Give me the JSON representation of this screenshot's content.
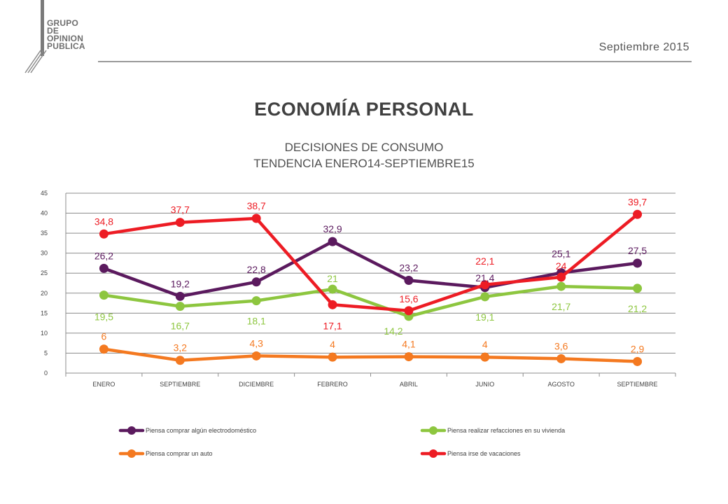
{
  "logo": {
    "lines": [
      "GRUPO",
      "DE",
      "OPINION",
      "PUBLICA"
    ]
  },
  "header": {
    "date": "Septiembre 2015"
  },
  "title": "ECONOMÍA PERSONAL",
  "subtitle_lines": [
    "DECISIONES DE CONSUMO",
    "TENDENCIA ENERO14-SEPTIEMBRE15"
  ],
  "chart_data": {
    "type": "line",
    "categories": [
      "ENERO",
      "SEPTIEMBRE",
      "DICIEMBRE",
      "FEBRERO",
      "ABRIL",
      "JUNIO",
      "AGOSTO",
      "SEPTIEMBRE"
    ],
    "ylim": [
      0,
      45
    ],
    "yticks": [
      "0",
      "5",
      "10",
      "15",
      "20",
      "25",
      "30",
      "35",
      "40",
      "45"
    ],
    "grid": true,
    "legend_position": "bottom",
    "series": [
      {
        "name": "Piensa comprar algún electrodoméstico",
        "color": "#5b1a5e",
        "values": [
          26.2,
          19.2,
          22.8,
          32.9,
          23.2,
          21.4,
          25.1,
          27.5
        ],
        "labels": [
          "26,2",
          "19,2",
          "22,8",
          "32,9",
          "23,2",
          "21,4",
          "25,1",
          "27,5"
        ]
      },
      {
        "name": "Piensa realizar refacciones en su vivienda",
        "color": "#8dc63f",
        "values": [
          19.5,
          16.7,
          18.1,
          21,
          14.2,
          19.1,
          21.7,
          21.2
        ],
        "labels": [
          "19,5",
          "16,7",
          "18,1",
          "21",
          "14,2",
          "19,1",
          "21,7",
          "21,2"
        ]
      },
      {
        "name": "Piensa comprar un auto",
        "color": "#f47920",
        "values": [
          6,
          3.2,
          4.3,
          4,
          4.1,
          4,
          3.6,
          2.9
        ],
        "labels": [
          "6",
          "3,2",
          "4,3",
          "4",
          "4,1",
          "4",
          "3,6",
          "2,9"
        ]
      },
      {
        "name": "Piensa irse de vacaciones",
        "color": "#ed1c24",
        "values": [
          34.8,
          37.7,
          38.7,
          17.1,
          15.6,
          22.1,
          24,
          39.7
        ],
        "labels": [
          "34,8",
          "37,7",
          "38,7",
          "17,1",
          "15,6",
          "22,1",
          "24",
          "39,7"
        ]
      }
    ]
  }
}
